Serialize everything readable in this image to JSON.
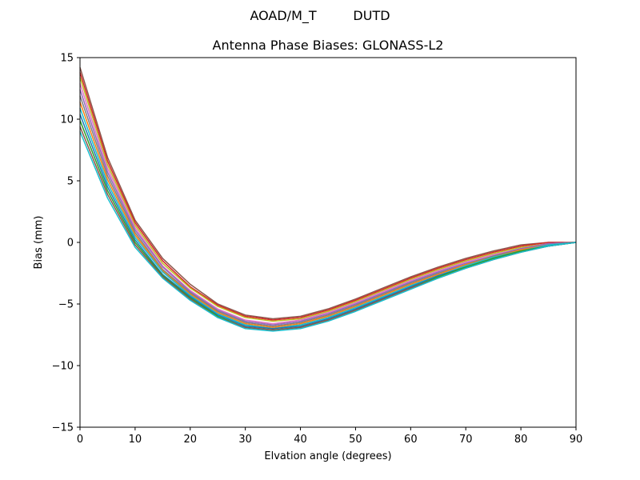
{
  "figure": {
    "suptitle": "AOAD/M_T         DUTD"
  },
  "chart_data": {
    "type": "line",
    "title": "Antenna Phase Biases: GLONASS-L2",
    "xlabel": "Elvation angle (degrees)",
    "ylabel": "Bias (mm)",
    "xlim": [
      0,
      90
    ],
    "ylim": [
      -15,
      15
    ],
    "xticks": [
      0,
      10,
      20,
      30,
      40,
      50,
      60,
      70,
      80,
      90
    ],
    "yticks": [
      -15,
      -10,
      -5,
      0,
      5,
      10,
      15
    ],
    "xtick_labels": [
      "0",
      "10",
      "20",
      "30",
      "40",
      "50",
      "60",
      "70",
      "80",
      "90"
    ],
    "ytick_labels": [
      "−15",
      "−10",
      "−5",
      "0",
      "5",
      "10",
      "15"
    ],
    "grid": false,
    "legend": "none",
    "x": [
      0,
      5,
      10,
      15,
      20,
      25,
      30,
      35,
      40,
      45,
      50,
      55,
      60,
      65,
      70,
      75,
      80,
      85,
      90
    ],
    "series": [
      {
        "values": [
          14.2,
          6.9,
          1.8,
          -1.3,
          -3.4,
          -5.0,
          -5.9,
          -6.2,
          -6.0,
          -5.4,
          -4.6,
          -3.7,
          -2.8,
          -2.0,
          -1.3,
          -0.7,
          -0.2,
          0.0,
          0.0
        ]
      },
      {
        "values": [
          13.8,
          6.6,
          1.6,
          -1.5,
          -3.6,
          -5.1,
          -6.0,
          -6.3,
          -6.1,
          -5.5,
          -4.7,
          -3.8,
          -2.9,
          -2.1,
          -1.4,
          -0.8,
          -0.3,
          0.0,
          0.0
        ]
      },
      {
        "values": [
          13.4,
          6.3,
          1.4,
          -1.7,
          -3.7,
          -5.2,
          -6.1,
          -6.4,
          -6.2,
          -5.6,
          -4.8,
          -3.9,
          -3.0,
          -2.2,
          -1.5,
          -0.9,
          -0.4,
          -0.1,
          0.0
        ]
      },
      {
        "values": [
          12.9,
          6.0,
          1.2,
          -1.9,
          -3.9,
          -5.4,
          -6.3,
          -6.6,
          -6.3,
          -5.7,
          -4.9,
          -4.0,
          -3.1,
          -2.3,
          -1.6,
          -1.0,
          -0.5,
          -0.1,
          0.0
        ]
      },
      {
        "values": [
          12.4,
          5.7,
          1.0,
          -2.0,
          -4.0,
          -5.5,
          -6.4,
          -6.7,
          -6.4,
          -5.8,
          -5.0,
          -4.1,
          -3.2,
          -2.4,
          -1.7,
          -1.1,
          -0.5,
          -0.1,
          0.0
        ]
      },
      {
        "values": [
          11.9,
          5.4,
          0.8,
          -2.2,
          -4.1,
          -5.6,
          -6.5,
          -6.8,
          -6.5,
          -5.9,
          -5.1,
          -4.2,
          -3.3,
          -2.5,
          -1.8,
          -1.1,
          -0.6,
          -0.2,
          0.0
        ]
      },
      {
        "values": [
          11.4,
          5.1,
          0.6,
          -2.3,
          -4.2,
          -5.7,
          -6.6,
          -6.9,
          -6.6,
          -6.0,
          -5.2,
          -4.3,
          -3.4,
          -2.6,
          -1.8,
          -1.2,
          -0.6,
          -0.2,
          0.0
        ]
      },
      {
        "values": [
          10.9,
          4.8,
          0.4,
          -2.4,
          -4.3,
          -5.8,
          -6.7,
          -7.0,
          -6.7,
          -6.1,
          -5.3,
          -4.4,
          -3.5,
          -2.7,
          -1.9,
          -1.2,
          -0.7,
          -0.2,
          0.0
        ]
      },
      {
        "values": [
          10.4,
          4.5,
          0.2,
          -2.6,
          -4.4,
          -5.9,
          -6.8,
          -7.0,
          -6.8,
          -6.2,
          -5.4,
          -4.5,
          -3.6,
          -2.7,
          -2.0,
          -1.3,
          -0.7,
          -0.3,
          0.0
        ]
      },
      {
        "values": [
          9.9,
          4.2,
          0.0,
          -2.7,
          -4.5,
          -6.0,
          -6.9,
          -7.1,
          -6.9,
          -6.3,
          -5.5,
          -4.6,
          -3.7,
          -2.8,
          -2.0,
          -1.3,
          -0.7,
          -0.3,
          0.0
        ]
      },
      {
        "values": [
          9.4,
          3.9,
          -0.2,
          -2.8,
          -4.6,
          -6.1,
          -6.9,
          -7.1,
          -6.9,
          -6.3,
          -5.5,
          -4.6,
          -3.7,
          -2.9,
          -2.1,
          -1.4,
          -0.8,
          -0.3,
          0.0
        ]
      },
      {
        "values": [
          9.0,
          3.6,
          -0.4,
          -2.9,
          -4.7,
          -6.1,
          -7.0,
          -7.2,
          -7.0,
          -6.4,
          -5.6,
          -4.7,
          -3.8,
          -2.9,
          -2.1,
          -1.4,
          -0.8,
          -0.3,
          0.0
        ]
      }
    ],
    "series_colors": [
      "#8c564b",
      "#d62728",
      "#bcbd22",
      "#e377c2",
      "#9467bd",
      "#7f7f7f",
      "#ff7f0e",
      "#17becf",
      "#1f77b4",
      "#2ca02c",
      "#8c564b",
      "#17becf"
    ]
  }
}
